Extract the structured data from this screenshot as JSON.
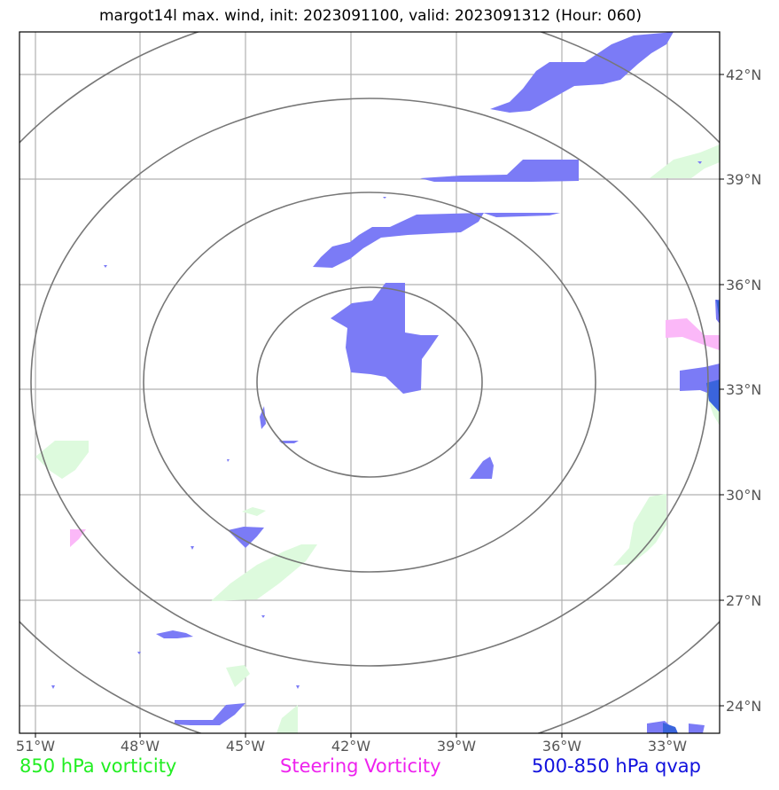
{
  "title": "margot14l max. wind, init: 2023091100, valid: 2023091312 (Hour: 060)",
  "map": {
    "lon_labels": [
      "51°W",
      "48°W",
      "45°W",
      "42°W",
      "39°W",
      "36°W",
      "33°W"
    ],
    "lat_labels": [
      "42°N",
      "39°N",
      "36°N",
      "33°N",
      "30°N",
      "27°N",
      "24°N"
    ]
  },
  "legend": {
    "vorticity": {
      "label": "850 hPa vorticity",
      "color": "#22ee22"
    },
    "steering": {
      "label": "Steering Vorticity",
      "color": "#ee22ee"
    },
    "qvap": {
      "label": "500-850 hPa qvap",
      "color": "#1111dd"
    }
  },
  "colors": {
    "qvap_fill": "#7b7bf6",
    "vorticity_fill": "#ddfadd",
    "steering_fill": "#fbb8f8",
    "grid": "#b0b0b0",
    "rings": "#777777"
  }
}
